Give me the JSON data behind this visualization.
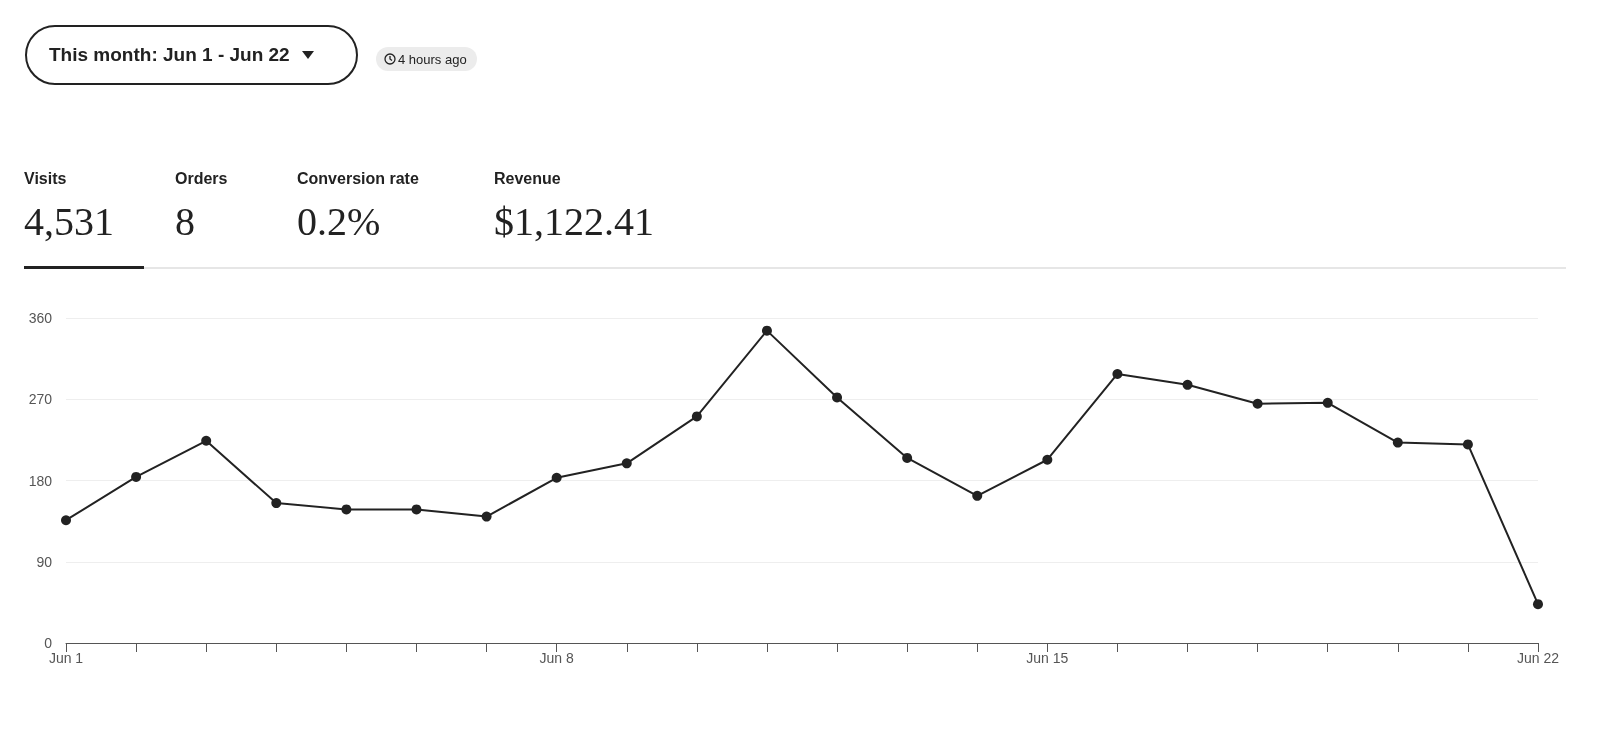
{
  "chart_data": [
    {
      "type": "other",
      "annotations": [
        "This month: Jun 1 - Jun 22",
        "4 hours ago",
        "Visits",
        "4,531",
        "Orders",
        "8",
        "Conversion rate",
        "0.2%",
        "Revenue",
        "$1,122.41"
      ]
    },
    {
      "type": "line",
      "categories": [
        "Jun 1",
        null,
        null,
        null,
        null,
        null,
        null,
        "Jun 8",
        null,
        null,
        null,
        null,
        null,
        null,
        "Jun 15",
        null,
        null,
        null,
        null,
        null,
        null,
        "Jun 22"
      ],
      "values": [
        136,
        184,
        224,
        155,
        148,
        148,
        140,
        183,
        199,
        251,
        346,
        272,
        205,
        163,
        203,
        298,
        286,
        265,
        266,
        222,
        220,
        43
      ],
      "color": "#222222",
      "ylim": [
        0,
        360
      ],
      "yticks": [
        0,
        90,
        180,
        270,
        360
      ],
      "grid": "y",
      "marker": "circle",
      "line_style": "solid"
    }
  ]
}
